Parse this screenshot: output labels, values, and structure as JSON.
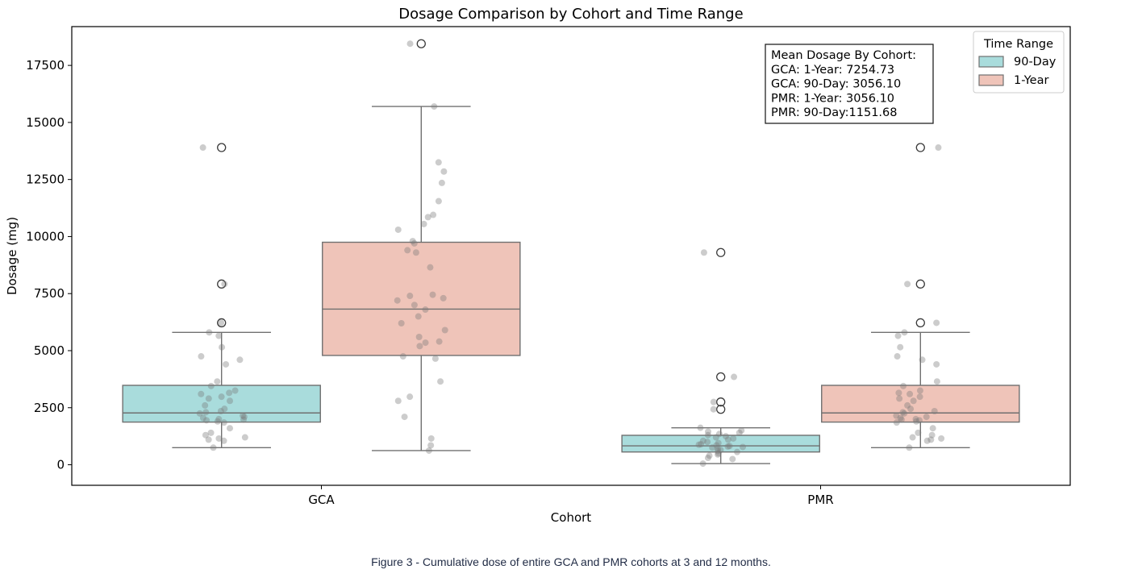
{
  "chart_data": {
    "type": "box",
    "title": "Dosage Comparison by Cohort and Time Range",
    "xlabel": "Cohort",
    "ylabel": "Dosage (mg)",
    "ylim": [
      -900,
      19200
    ],
    "yticks": [
      0,
      2500,
      5000,
      7500,
      10000,
      12500,
      15000,
      17500
    ],
    "categories": [
      "GCA",
      "PMR"
    ],
    "legend": {
      "title": "Time Range",
      "position": "top-right",
      "entries": [
        {
          "label": "90-Day",
          "color": "#a9dcdc"
        },
        {
          "label": "1-Year",
          "color": "#efc4b9"
        }
      ]
    },
    "annotation": {
      "position": "top-right",
      "lines": [
        "Mean Dosage By Cohort:",
        " GCA: 1-Year: 7254.73",
        " GCA: 90-Day: 3056.10",
        " PMR: 1-Year: 3056.10",
        " PMR: 90-Day:1151.68"
      ]
    },
    "series": [
      {
        "name": "90-Day",
        "color": "#a9dcdc",
        "boxes": [
          {
            "category": "GCA",
            "whisker_low": 750,
            "q1": 1870,
            "median": 2270,
            "q3": 3480,
            "whisker_high": 5800,
            "outliers": [
              6220,
              7920,
              13900
            ],
            "points": [
              6220,
              7920,
              13900,
              5800,
              5650,
              5150,
              4750,
              4600,
              4400,
              3650,
              3450,
              3250,
              3150,
              3100,
              2980,
              2900,
              2800,
              2600,
              2450,
              2350,
              2300,
              2250,
              2150,
              2100,
              2050,
              2000,
              1980,
              1950,
              1900,
              1850,
              1600,
              1400,
              1300,
              1200,
              1150,
              1100,
              1050,
              750
            ]
          },
          {
            "category": "PMR",
            "whisker_low": 50,
            "q1": 560,
            "median": 830,
            "q3": 1290,
            "whisker_high": 1620,
            "outliers": [
              2430,
              2750,
              3850,
              9300
            ],
            "points": [
              9300,
              3850,
              2750,
              2430,
              1620,
              1500,
              1450,
              1400,
              1350,
              1300,
              1250,
              1200,
              1150,
              1100,
              1050,
              1000,
              950,
              900,
              880,
              850,
              820,
              800,
              780,
              750,
              700,
              650,
              600,
              560,
              500,
              450,
              400,
              300,
              250,
              50
            ]
          }
        ]
      },
      {
        "name": "1-Year",
        "color": "#efc4b9",
        "boxes": [
          {
            "category": "GCA",
            "whisker_low": 620,
            "q1": 4790,
            "median": 6820,
            "q3": 9750,
            "whisker_high": 15700,
            "outliers": [
              18450
            ],
            "points": [
              18450,
              15700,
              13250,
              12850,
              12350,
              11550,
              10950,
              10850,
              10550,
              10300,
              9800,
              9700,
              9400,
              9300,
              8650,
              7450,
              7400,
              7300,
              7200,
              7000,
              6800,
              6500,
              6200,
              5900,
              5600,
              5400,
              5350,
              5200,
              4750,
              4650,
              3650,
              2980,
              2800,
              2100,
              1150,
              850,
              620
            ]
          },
          {
            "category": "PMR",
            "whisker_low": 750,
            "q1": 1870,
            "median": 2270,
            "q3": 3480,
            "whisker_high": 5800,
            "outliers": [
              6220,
              7920,
              13900
            ],
            "points": [
              13900,
              7920,
              6220,
              5800,
              5650,
              5150,
              4750,
              4600,
              4400,
              3650,
              3450,
              3250,
              3150,
              3100,
              2980,
              2900,
              2800,
              2600,
              2450,
              2350,
              2300,
              2250,
              2150,
              2100,
              2050,
              2000,
              1980,
              1950,
              1900,
              1850,
              1600,
              1400,
              1300,
              1200,
              1150,
              1100,
              1050,
              750
            ]
          }
        ]
      }
    ]
  },
  "caption": "Figure 3 - Cumulative dose of entire GCA and PMR cohorts at 3 and 12 months."
}
